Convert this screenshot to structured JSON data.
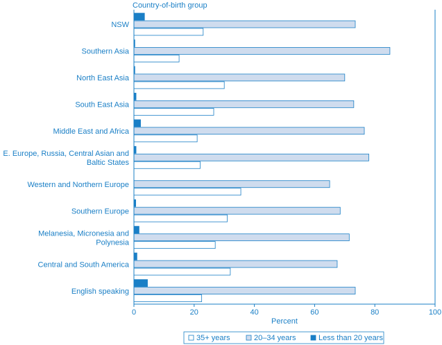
{
  "chart_data": {
    "type": "bar",
    "orientation": "horizontal",
    "axis_title_y": "Country-of-birth group",
    "xlabel": "Percent",
    "xlim": [
      0,
      100
    ],
    "x_ticks": [
      "0",
      "20",
      "40",
      "60",
      "80",
      "100"
    ],
    "grid": false,
    "legend_position": "bottom",
    "categories": [
      "NSW",
      "Southern Asia",
      "North East Asia",
      "South East Asia",
      "Middle East and Africa",
      "E. Europe, Russia, Central Asian and Baltic States",
      "Western and Northern Europe",
      "Southern Europe",
      "Melanesia, Micronesia and Polynesia",
      "Central and South America",
      "English speaking"
    ],
    "category_lines": [
      [
        "NSW"
      ],
      [
        "Southern Asia"
      ],
      [
        "North East Asia"
      ],
      [
        "South East Asia"
      ],
      [
        "Middle East and Africa"
      ],
      [
        "E. Europe, Russia, Central Asian and",
        "Baltic States"
      ],
      [
        "Western and Northern Europe"
      ],
      [
        "Southern Europe"
      ],
      [
        "Melanesia, Micronesia and",
        "Polynesia"
      ],
      [
        "Central and South America"
      ],
      [
        "English speaking"
      ]
    ],
    "series": [
      {
        "name": "Less than 20 years",
        "values": [
          3.5,
          0.3,
          0.3,
          0.7,
          2.2,
          0.7,
          0.0,
          0.6,
          1.7,
          1.0,
          4.5
        ]
      },
      {
        "name": "20–34 years",
        "values": [
          73.5,
          85,
          70,
          73,
          76.5,
          78,
          65,
          68.5,
          71.5,
          67.5,
          73.5
        ]
      },
      {
        "name": "35+ years",
        "values": [
          23,
          15,
          30,
          26.5,
          21,
          22,
          35.5,
          31,
          27,
          32,
          22.5
        ]
      }
    ],
    "legend": [
      "35+ years",
      "20–34 years",
      "Less than 20 years"
    ],
    "colors": {
      "text": "#1a7fc6",
      "axis": "#1a7fc6",
      "solid_fill": "#1a7fc6",
      "light_fill": "#cfdcee",
      "white_fill": "#ffffff",
      "outline": "#1a7fc6"
    }
  }
}
